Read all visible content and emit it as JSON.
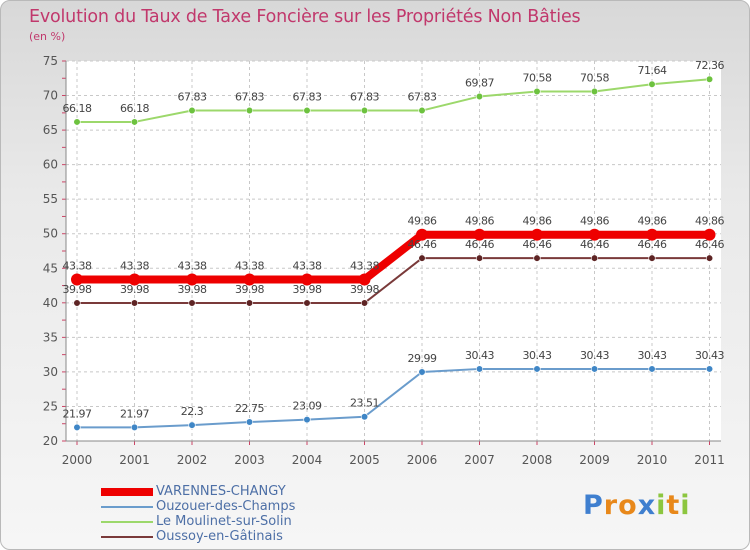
{
  "chart_data": {
    "type": "line",
    "title": "Evolution du Taux de Taxe Foncière sur les Propriétés Non Bâties",
    "subtitle": "(en %)",
    "xlabel": "",
    "ylabel": "",
    "ylim": [
      20,
      75
    ],
    "yticks": [
      20,
      25,
      30,
      35,
      40,
      45,
      50,
      55,
      60,
      65,
      70,
      75
    ],
    "categories": [
      "2000",
      "2001",
      "2002",
      "2003",
      "2004",
      "2005",
      "2006",
      "2007",
      "2008",
      "2009",
      "2010",
      "2011"
    ],
    "grid": true,
    "legend_position": "bottom-left",
    "series": [
      {
        "name": "VARENNES-CHANGY",
        "color": "#ee0000",
        "marker_color": "#ee0000",
        "values": [
          43.38,
          43.38,
          43.38,
          43.38,
          43.38,
          43.38,
          49.86,
          49.86,
          49.86,
          49.86,
          49.86,
          49.86
        ],
        "labels": [
          "43.38",
          "43.38",
          "43.38",
          "43.38",
          "43.38",
          "43.38",
          "49.86",
          "49.86",
          "49.86",
          "49.86",
          "49.86",
          "49.86"
        ]
      },
      {
        "name": "Ouzouer-des-Champs",
        "color": "#6a9ccc",
        "marker_color": "#3f86c6",
        "values": [
          21.97,
          21.97,
          22.3,
          22.75,
          23.09,
          23.51,
          29.99,
          30.43,
          30.43,
          30.43,
          30.43,
          30.43
        ],
        "labels": [
          "21.97",
          "21.97",
          "22.3",
          "22.75",
          "23.09",
          "23.51",
          "29.99",
          "30.43",
          "30.43",
          "30.43",
          "30.43",
          "30.43"
        ]
      },
      {
        "name": "Le Moulinet-sur-Solin",
        "color": "#9cd86b",
        "marker_color": "#6dc23f",
        "values": [
          66.18,
          66.18,
          67.83,
          67.83,
          67.83,
          67.83,
          67.83,
          69.87,
          70.58,
          70.58,
          71.64,
          72.36
        ],
        "labels": [
          "66.18",
          "66.18",
          "67.83",
          "67.83",
          "67.83",
          "67.83",
          "67.83",
          "69.87",
          "70.58",
          "70.58",
          "71.64",
          "72.36"
        ]
      },
      {
        "name": "Oussoy-en-Gâtinais",
        "color": "#7a3a3a",
        "marker_color": "#5e2424",
        "values": [
          39.98,
          39.98,
          39.98,
          39.98,
          39.98,
          39.98,
          46.46,
          46.46,
          46.46,
          46.46,
          46.46,
          46.46
        ],
        "labels": [
          "39.98",
          "39.98",
          "39.98",
          "39.98",
          "39.98",
          "39.98",
          "46.46",
          "46.46",
          "46.46",
          "46.46",
          "46.46",
          "46.46"
        ]
      }
    ]
  },
  "brand": {
    "letters": [
      "P",
      "r",
      "o",
      "x",
      "i",
      "t",
      "i"
    ],
    "colors": [
      "#3f7fcf",
      "#e8881a",
      "#e8881a",
      "#3f7fcf",
      "#8cc63f",
      "#e8881a",
      "#8cc63f"
    ]
  }
}
